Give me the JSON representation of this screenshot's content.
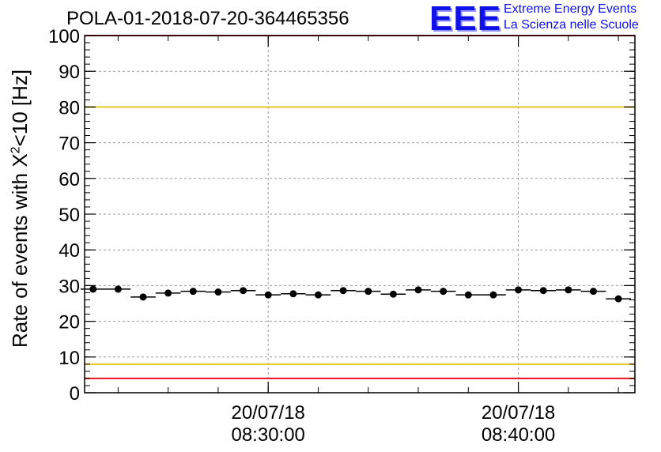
{
  "title": "POLA-01-2018-07-20-364465356",
  "logo": {
    "mark": "EEE",
    "line1": "Extreme Energy Events",
    "line2": "La Scienza nelle Scuole",
    "color": "#1010e8"
  },
  "chart_data": {
    "type": "scatter",
    "title": "POLA-01-2018-07-20-364465356",
    "ylabel": {
      "prefix": "Rate of events with X",
      "sup": "2",
      "suffix": "<10 [Hz]"
    },
    "ylim": [
      0,
      100
    ],
    "y_ticks": [
      "0",
      "10",
      "20",
      "30",
      "40",
      "50",
      "60",
      "70",
      "80",
      "90",
      "100"
    ],
    "x_ticks": [
      {
        "date": "20/07/18",
        "time": "08:30:00"
      },
      {
        "date": "20/07/18",
        "time": "08:40:00"
      }
    ],
    "grid": true,
    "reference_lines": [
      {
        "value": 100,
        "color": "#e8141c"
      },
      {
        "value": 80,
        "color": "#e8c81c"
      },
      {
        "value": 8,
        "color": "#e8c81c"
      },
      {
        "value": 4,
        "color": "#e8141c"
      }
    ],
    "series": [
      {
        "marker_color": "#000000",
        "x": [
          "08:23:00",
          "08:24:00",
          "08:25:00",
          "08:26:00",
          "08:27:00",
          "08:28:00",
          "08:29:00",
          "08:30:00",
          "08:31:00",
          "08:32:00",
          "08:33:00",
          "08:34:00",
          "08:35:00",
          "08:36:00",
          "08:37:00",
          "08:38:00",
          "08:39:00",
          "08:40:00",
          "08:41:00",
          "08:42:00",
          "08:43:00",
          "08:44:00"
        ],
        "y": [
          29.0,
          29.0,
          26.8,
          27.9,
          28.4,
          28.2,
          28.6,
          27.4,
          27.7,
          27.4,
          28.6,
          28.4,
          27.6,
          28.8,
          28.4,
          27.4,
          27.4,
          28.8,
          28.6,
          28.8,
          28.4,
          26.3
        ]
      }
    ]
  }
}
